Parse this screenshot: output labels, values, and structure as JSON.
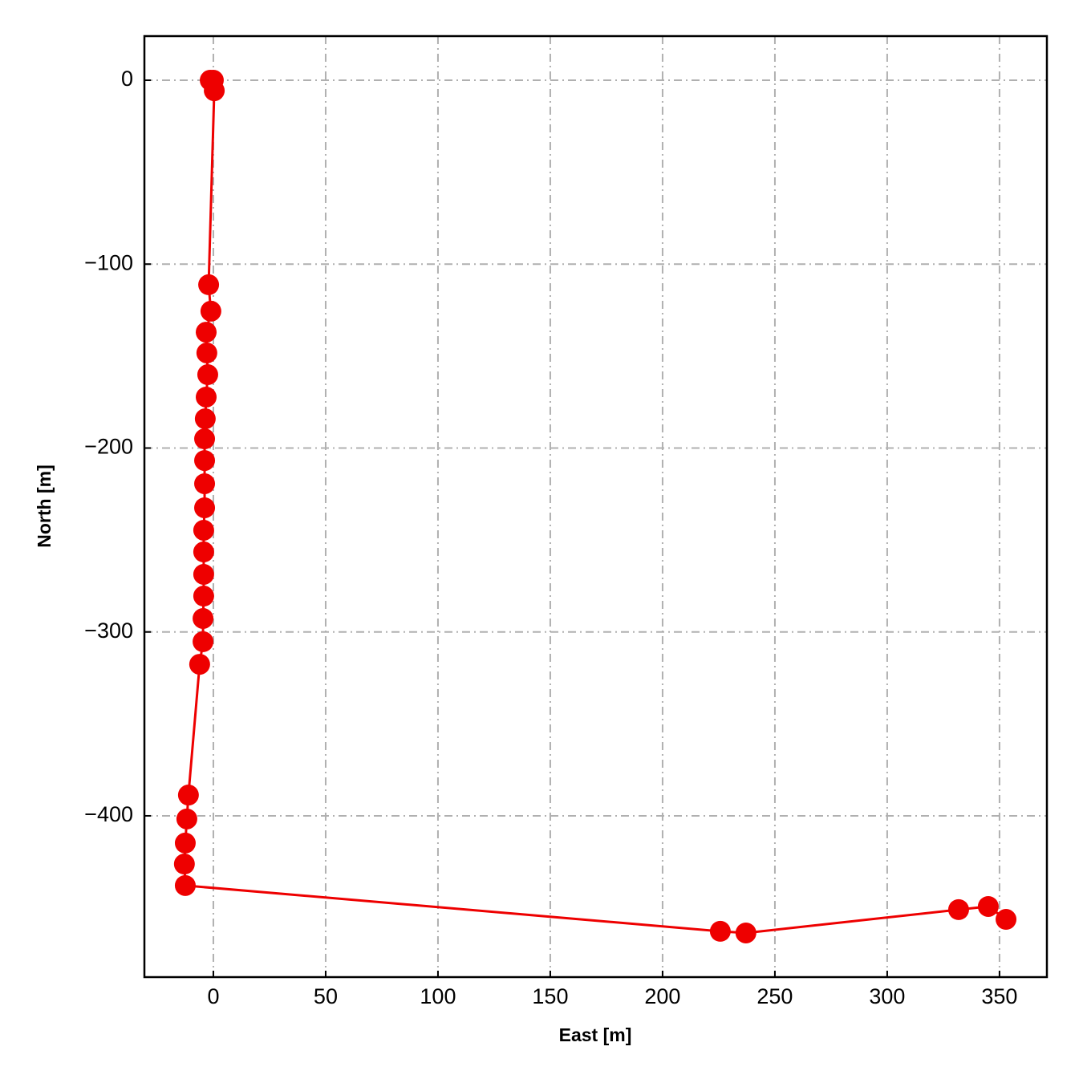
{
  "chart_data": {
    "type": "line",
    "xlabel": "East [m]",
    "ylabel": "North [m]",
    "x": [
      -1.4,
      0,
      0.4,
      -2.1,
      -1.1,
      -3.2,
      -2.9,
      -2.5,
      -3.2,
      -3.6,
      -3.9,
      -3.9,
      -3.9,
      -3.9,
      -4.3,
      -4.3,
      -4.3,
      -4.3,
      -4.6,
      -4.6,
      -6.1,
      -11.1,
      -11.8,
      -12.5,
      -12.9,
      -12.5,
      225.7,
      237.1,
      331.8,
      345.0,
      352.9
    ],
    "series": [
      {
        "color": "#ee0000",
        "values": [
          0,
          0,
          -5.7,
          -111.2,
          -125.6,
          -137.0,
          -148.3,
          -160.1,
          -172.3,
          -184.1,
          -195.0,
          -206.8,
          -219.4,
          -232.5,
          -244.7,
          -256.5,
          -268.7,
          -280.5,
          -292.7,
          -305.3,
          -317.6,
          -388.7,
          -401.7,
          -414.8,
          -426.2,
          -437.9,
          -462.8,
          -463.7,
          -451.0,
          -449.3,
          -456.3
        ]
      }
    ],
    "markers": true,
    "xlim": [
      -30.7,
      371.1
    ],
    "xticks": [
      0,
      50,
      100,
      150,
      200,
      250,
      300,
      350
    ],
    "ylim": [
      -487.7,
      24.0
    ],
    "yticks": [
      0,
      {
        "value": -100,
        "label": "−100"
      },
      {
        "value": -200,
        "label": "−200"
      },
      {
        "value": -300,
        "label": "−300"
      },
      {
        "value": -400,
        "label": "−400"
      }
    ],
    "grid": true
  }
}
